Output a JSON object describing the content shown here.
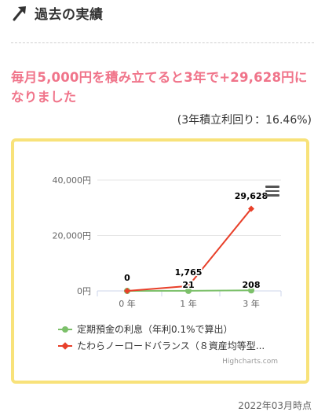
{
  "header": {
    "title": "過去の実績"
  },
  "headline": "毎月5,000円を積み立てると3年で+29,628円になりました",
  "subline": "(3年積立利回り：16.46%)",
  "colors": {
    "accent_text": "#f0748a",
    "card_border": "#f8e27a",
    "series_green": "#7cc06a",
    "series_red": "#e8402a"
  },
  "chart_data": {
    "type": "line",
    "categories": [
      "0 年",
      "1 年",
      "3 年"
    ],
    "y_ticks": [
      "0円",
      "20,000円",
      "40,000円"
    ],
    "ylim": [
      0,
      40000
    ],
    "grid": true,
    "legend_position": "bottom",
    "series": [
      {
        "name": "定期預金の利息（年利0.1%で算出）",
        "color": "#7cc06a",
        "values": [
          0,
          21,
          208
        ],
        "labels": [
          "0",
          "21",
          "208"
        ]
      },
      {
        "name": "たわらノーロードバランス（８資産均等型...",
        "color": "#e8402a",
        "values": [
          0,
          1765,
          29628
        ],
        "labels": [
          "0",
          "1,765",
          "29,628"
        ]
      }
    ],
    "credits": "Highcharts.com"
  },
  "footer": {
    "date": "2022年03月時点"
  }
}
